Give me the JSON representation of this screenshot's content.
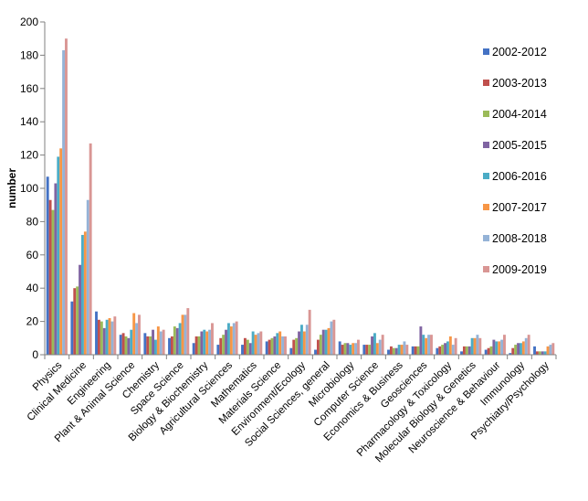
{
  "chart_data": {
    "type": "bar",
    "title": "",
    "xlabel": "",
    "ylabel": "number",
    "ylim": [
      0,
      200
    ],
    "yticks": [
      0,
      20,
      40,
      60,
      80,
      100,
      120,
      140,
      160,
      180,
      200
    ],
    "grid": false,
    "legend_position": "right",
    "categories": [
      "Physics",
      "Clinical Medicine",
      "Engineering",
      "Plant & Animal Science",
      "Chemistry",
      "Space Science",
      "Biology & Biochemistry",
      "Agricultural Sciences",
      "Mathematics",
      "Materials Science",
      "Environment/Ecology",
      "Social Sciences, general",
      "Microbiology",
      "Computer Science",
      "Economics & Business",
      "Geosciences",
      "Pharmacology & Toxicology",
      "Molecular Biology & Genetics",
      "Neuroscience & Behaviour",
      "Immunology",
      "Psychiatry/Psychology"
    ],
    "series": [
      {
        "name": "2002-2012",
        "color": "#4472C4",
        "values": [
          107,
          32,
          26,
          12,
          13,
          10,
          7,
          6,
          6,
          8,
          4,
          3,
          8,
          6,
          3,
          5,
          4,
          2,
          3,
          1,
          5
        ]
      },
      {
        "name": "2003-2013",
        "color": "#C0504D",
        "values": [
          93,
          40,
          21,
          13,
          11,
          11,
          11,
          10,
          10,
          9,
          9,
          9,
          6,
          6,
          5,
          5,
          5,
          5,
          4,
          4,
          2
        ]
      },
      {
        "name": "2004-2014",
        "color": "#9BBB59",
        "values": [
          87,
          41,
          20,
          11,
          11,
          17,
          11,
          12,
          9,
          10,
          10,
          12,
          7,
          6,
          4,
          5,
          6,
          5,
          5,
          6,
          2
        ]
      },
      {
        "name": "2005-2015",
        "color": "#8064A2",
        "values": [
          103,
          54,
          16,
          10,
          15,
          16,
          14,
          15,
          7,
          11,
          14,
          15,
          7,
          11,
          4,
          17,
          7,
          5,
          9,
          7,
          2
        ]
      },
      {
        "name": "2006-2016",
        "color": "#4BACC6",
        "values": [
          119,
          72,
          21,
          15,
          9,
          19,
          15,
          19,
          14,
          13,
          18,
          15,
          6,
          13,
          6,
          12,
          8,
          10,
          8,
          7,
          2
        ]
      },
      {
        "name": "2007-2017",
        "color": "#F79646",
        "values": [
          124,
          74,
          22,
          25,
          17,
          24,
          14,
          17,
          12,
          14,
          14,
          16,
          7,
          7,
          6,
          10,
          11,
          10,
          8,
          8,
          5
        ]
      },
      {
        "name": "2008-2018",
        "color": "#95B3D7",
        "values": [
          183,
          93,
          20,
          19,
          14,
          24,
          15,
          19,
          13,
          11,
          18,
          20,
          7,
          9,
          8,
          12,
          6,
          12,
          9,
          10,
          6
        ]
      },
      {
        "name": "2009-2019",
        "color": "#D99694",
        "values": [
          190,
          127,
          23,
          24,
          15,
          28,
          19,
          20,
          14,
          11,
          27,
          21,
          9,
          12,
          6,
          12,
          10,
          10,
          12,
          12,
          7
        ]
      }
    ]
  }
}
